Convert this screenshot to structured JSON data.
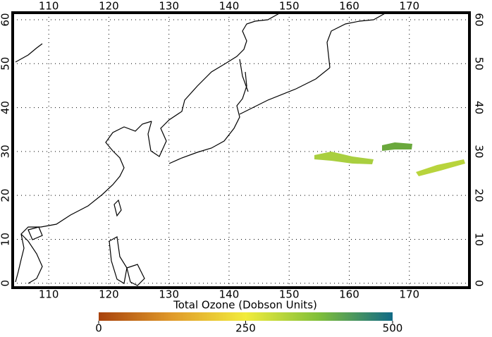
{
  "map": {
    "lonlim": [
      104,
      180
    ],
    "latlim": [
      -1,
      61.6
    ],
    "lonticks": [
      110,
      120,
      130,
      140,
      150,
      160,
      170
    ],
    "latticks": [
      0,
      10,
      20,
      30,
      40,
      50,
      60
    ],
    "grid": true
  },
  "colorbar": {
    "title": "Total Ozone (Dobson Units)",
    "range": [
      0,
      500
    ],
    "ticks": [
      0,
      250,
      500
    ],
    "colors": [
      "#a8420c",
      "#e09a2a",
      "#f2ec3c",
      "#7fbf3a",
      "#116a86"
    ]
  }
}
